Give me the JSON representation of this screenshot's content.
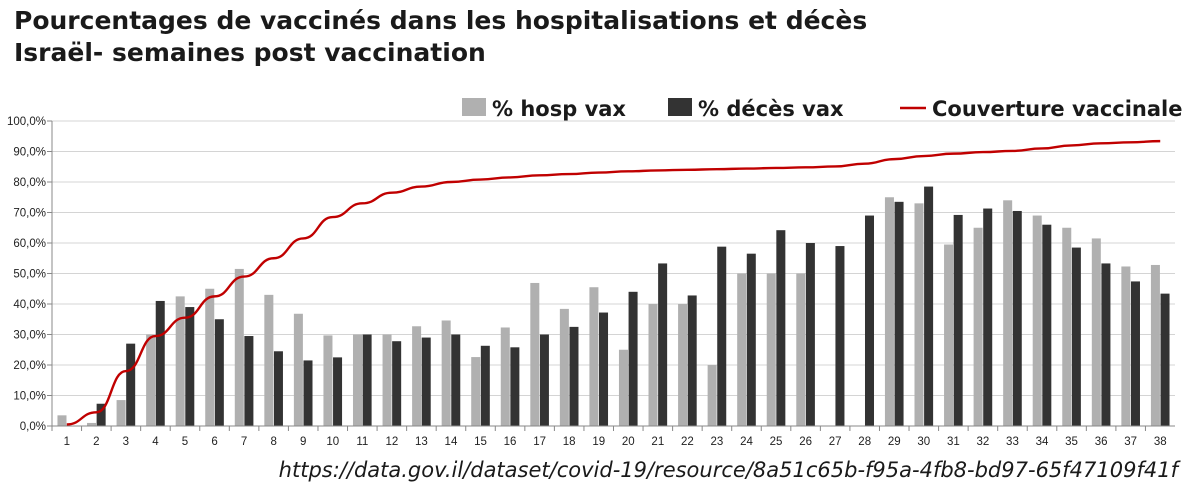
{
  "title_line1": "Pourcentages de vaccinés dans les hospitalisations et décès",
  "title_line2": "Israël- semaines post vaccination",
  "source": "https://data.gov.il/dataset/covid-19/resource/8a51c65b-f95a-4fb8-bd97-65f47109f41f",
  "chart_data": {
    "type": "bar",
    "ylim": [
      0,
      100
    ],
    "ytick_labels": [
      "0,0%",
      "10,0%",
      "20,0%",
      "30,0%",
      "40,0%",
      "50,0%",
      "60,0%",
      "70,0%",
      "80,0%",
      "90,0%",
      "100,0%"
    ],
    "grid": true,
    "legend_position": "top-right",
    "categories": [
      "1",
      "2",
      "3",
      "4",
      "5",
      "6",
      "7",
      "8",
      "9",
      "10",
      "11",
      "12",
      "13",
      "14",
      "15",
      "16",
      "17",
      "18",
      "19",
      "20",
      "21",
      "22",
      "23",
      "24",
      "25",
      "26",
      "27",
      "28",
      "29",
      "30",
      "31",
      "32",
      "33",
      "34",
      "35",
      "36",
      "37",
      "38"
    ],
    "series": [
      {
        "name": "% hosp vax",
        "kind": "bar",
        "color": "#b0b0b0",
        "values": [
          3.5,
          1,
          8.5,
          30,
          42.5,
          45,
          51.5,
          43,
          36.8,
          29.7,
          30,
          30,
          32.7,
          34.6,
          22.6,
          32.3,
          46.9,
          38.4,
          45.5,
          25,
          40,
          40,
          20,
          50,
          50,
          50,
          0,
          0,
          75,
          73,
          59.5,
          65,
          74,
          69,
          65,
          61.5,
          52.3,
          52.8
        ]
      },
      {
        "name": "% décès vax",
        "kind": "bar",
        "color": "#333333",
        "values": [
          0,
          7.3,
          27,
          41,
          39,
          35,
          29.5,
          24.5,
          21.5,
          22.5,
          30,
          27.8,
          29,
          30,
          26.3,
          25.8,
          30,
          32.5,
          37.2,
          44,
          53.3,
          42.8,
          58.8,
          56.5,
          64.2,
          60,
          59,
          69,
          73.5,
          78.5,
          69.2,
          71.3,
          70.5,
          66,
          58.5,
          53.3,
          47.4,
          43.4
        ]
      },
      {
        "name": "Couverture vaccinale",
        "kind": "line",
        "color": "#c00000",
        "values": [
          0.5,
          4.5,
          18,
          29.5,
          35.5,
          42.5,
          49,
          55,
          61.5,
          68.5,
          73,
          76.5,
          78.5,
          80,
          80.8,
          81.5,
          82.2,
          82.6,
          83.1,
          83.5,
          83.8,
          84,
          84.2,
          84.4,
          84.6,
          84.8,
          85.1,
          86,
          87.5,
          88.5,
          89.3,
          89.8,
          90.2,
          91,
          92,
          92.7,
          93,
          93.4
        ]
      }
    ]
  }
}
